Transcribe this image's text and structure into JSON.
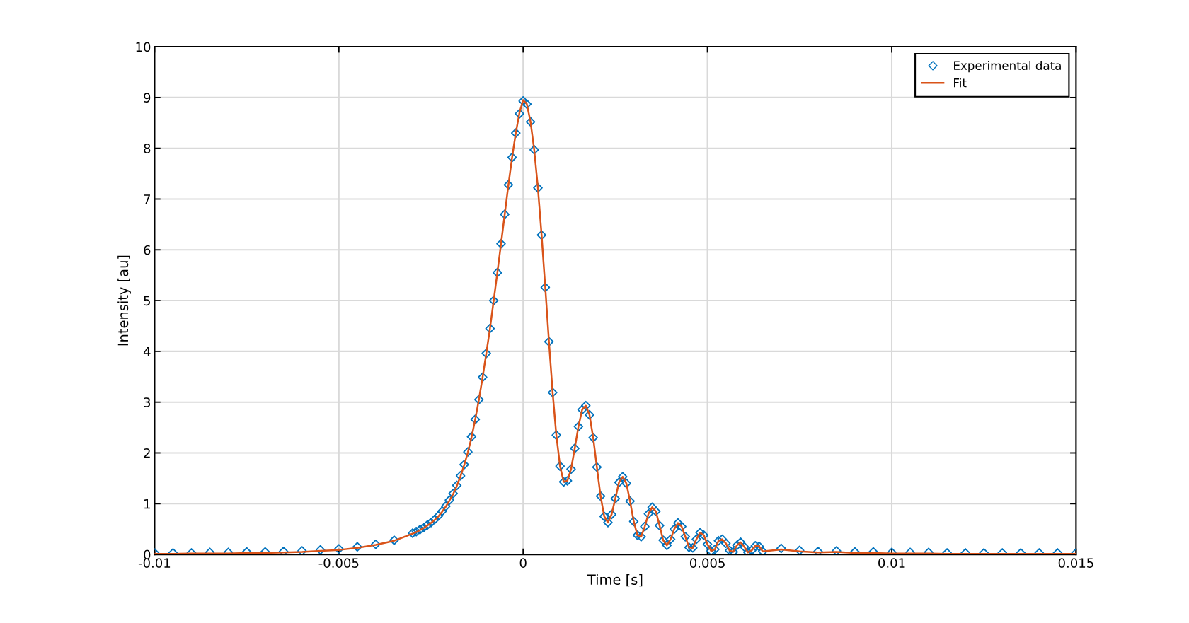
{
  "chart_data": {
    "type": "scatter",
    "xlabel": "Time [s]",
    "ylabel": "Intensity [au]",
    "xlim": [
      -0.01,
      0.015
    ],
    "xticks": [
      -0.01,
      -0.005,
      0,
      0.005,
      0.01,
      0.015
    ],
    "ylim": [
      0,
      10
    ],
    "yticks": [
      0,
      1,
      2,
      3,
      4,
      5,
      6,
      7,
      8,
      9,
      10
    ],
    "grid": true,
    "legend": "top right",
    "series": [
      {
        "name": "Experimental data",
        "marker": "diamond",
        "color": "#0072bd",
        "x": [
          -0.01,
          -0.0095,
          -0.009,
          -0.0085,
          -0.008,
          -0.0075,
          -0.007,
          -0.0065,
          -0.006,
          -0.0055,
          -0.005,
          -0.0045,
          -0.004,
          -0.0035,
          -0.003,
          -0.0029,
          -0.0028,
          -0.0027,
          -0.0026,
          -0.0025,
          -0.0024,
          -0.0023,
          -0.0022,
          -0.0021,
          -0.002,
          -0.0019,
          -0.0018,
          -0.0017,
          -0.0016,
          -0.0015,
          -0.0014,
          -0.0013,
          -0.0012,
          -0.0011,
          -0.001,
          -0.0009,
          -0.0008,
          -0.0007,
          -0.0006,
          -0.0005,
          -0.0004,
          -0.0003,
          -0.0002,
          -0.0001,
          0,
          0.0001,
          0.0002,
          0.0003,
          0.0004,
          0.0005,
          0.0006,
          0.0007,
          0.0008,
          0.0009,
          0.001,
          0.0011,
          0.0012,
          0.0013,
          0.0014,
          0.0015,
          0.0016,
          0.0017,
          0.0018,
          0.0019,
          0.002,
          0.0021,
          0.0022,
          0.0023,
          0.0024,
          0.0025,
          0.0026,
          0.0027,
          0.0028,
          0.0029,
          0.003,
          0.0031,
          0.0032,
          0.0033,
          0.0034,
          0.0035,
          0.0036,
          0.0037,
          0.0038,
          0.0039,
          0.004,
          0.0041,
          0.0042,
          0.0043,
          0.0044,
          0.0045,
          0.0046,
          0.0047,
          0.0048,
          0.0049,
          0.005,
          0.0051,
          0.0052,
          0.0053,
          0.0054,
          0.0055,
          0.0056,
          0.0057,
          0.0058,
          0.0059,
          0.006,
          0.0061,
          0.0062,
          0.0063,
          0.0064,
          0.0065,
          0.007,
          0.0075,
          0.008,
          0.0085,
          0.009,
          0.0095,
          0.01,
          0.0105,
          0.011,
          0.0115,
          0.012,
          0.0125,
          0.013,
          0.0135,
          0.014,
          0.0145,
          0.015
        ],
        "values": [
          0.03,
          0.03,
          0.03,
          0.04,
          0.04,
          0.05,
          0.05,
          0.06,
          0.07,
          0.09,
          0.11,
          0.15,
          0.2,
          0.28,
          0.42,
          0.45,
          0.49,
          0.53,
          0.58,
          0.63,
          0.69,
          0.76,
          0.85,
          0.95,
          1.07,
          1.2,
          1.36,
          1.55,
          1.77,
          2.02,
          2.32,
          2.66,
          3.05,
          3.49,
          3.96,
          4.45,
          5.0,
          5.55,
          6.12,
          6.7,
          7.28,
          7.82,
          8.3,
          8.68,
          8.93,
          8.87,
          8.52,
          7.97,
          7.22,
          6.29,
          5.26,
          4.19,
          3.19,
          2.35,
          1.74,
          1.43,
          1.45,
          1.68,
          2.09,
          2.52,
          2.85,
          2.93,
          2.75,
          2.3,
          1.72,
          1.15,
          0.75,
          0.63,
          0.79,
          1.1,
          1.42,
          1.53,
          1.4,
          1.05,
          0.65,
          0.38,
          0.35,
          0.55,
          0.8,
          0.93,
          0.85,
          0.57,
          0.28,
          0.18,
          0.3,
          0.5,
          0.62,
          0.55,
          0.35,
          0.14,
          0.13,
          0.3,
          0.43,
          0.38,
          0.2,
          0.07,
          0.1,
          0.27,
          0.3,
          0.22,
          0.08,
          0.05,
          0.18,
          0.24,
          0.15,
          0.04,
          0.08,
          0.17,
          0.16,
          0.06,
          0.12,
          0.08,
          0.06,
          0.07,
          0.05,
          0.05,
          0.04,
          0.04,
          0.04,
          0.03,
          0.03,
          0.03,
          0.03,
          0.03,
          0.03,
          0.03,
          0.03
        ]
      },
      {
        "name": "Fit",
        "type": "line",
        "marker": "none",
        "line_style": "solid",
        "color": "#d95319",
        "x": [
          -0.01,
          -0.0095,
          -0.009,
          -0.0085,
          -0.008,
          -0.0075,
          -0.007,
          -0.0065,
          -0.006,
          -0.0055,
          -0.005,
          -0.0045,
          -0.004,
          -0.0035,
          -0.003,
          -0.0029,
          -0.0028,
          -0.0027,
          -0.0026,
          -0.0025,
          -0.0024,
          -0.0023,
          -0.0022,
          -0.0021,
          -0.002,
          -0.0019,
          -0.0018,
          -0.0017,
          -0.0016,
          -0.0015,
          -0.0014,
          -0.0013,
          -0.0012,
          -0.0011,
          -0.001,
          -0.0009,
          -0.0008,
          -0.0007,
          -0.0006,
          -0.0005,
          -0.0004,
          -0.0003,
          -0.0002,
          -0.0001,
          0,
          0.0001,
          0.0002,
          0.0003,
          0.0004,
          0.0005,
          0.0006,
          0.0007,
          0.0008,
          0.0009,
          0.001,
          0.0011,
          0.0012,
          0.0013,
          0.0014,
          0.0015,
          0.0016,
          0.0017,
          0.0018,
          0.0019,
          0.002,
          0.0021,
          0.0022,
          0.0023,
          0.0024,
          0.0025,
          0.0026,
          0.0027,
          0.0028,
          0.0029,
          0.003,
          0.0031,
          0.0032,
          0.0033,
          0.0034,
          0.0035,
          0.0036,
          0.0037,
          0.0038,
          0.0039,
          0.004,
          0.0041,
          0.0042,
          0.0043,
          0.0044,
          0.0045,
          0.0046,
          0.0047,
          0.0048,
          0.0049,
          0.005,
          0.0051,
          0.0052,
          0.0053,
          0.0054,
          0.0055,
          0.0056,
          0.0057,
          0.0058,
          0.0059,
          0.006,
          0.0061,
          0.0062,
          0.0063,
          0.0064,
          0.0065,
          0.007,
          0.0075,
          0.008,
          0.0085,
          0.009,
          0.0095,
          0.01,
          0.0105,
          0.011,
          0.0115,
          0.012,
          0.0125,
          0.013,
          0.0135,
          0.014,
          0.0145,
          0.015
        ],
        "values": [
          0.01,
          0.01,
          0.02,
          0.02,
          0.02,
          0.03,
          0.03,
          0.04,
          0.05,
          0.07,
          0.09,
          0.13,
          0.19,
          0.27,
          0.41,
          0.44,
          0.48,
          0.52,
          0.57,
          0.62,
          0.68,
          0.75,
          0.84,
          0.94,
          1.06,
          1.19,
          1.35,
          1.54,
          1.76,
          2.01,
          2.31,
          2.66,
          3.05,
          3.49,
          3.96,
          4.45,
          5.0,
          5.55,
          6.12,
          6.7,
          7.28,
          7.82,
          8.3,
          8.7,
          8.95,
          8.87,
          8.52,
          7.97,
          7.22,
          6.29,
          5.26,
          4.19,
          3.19,
          2.35,
          1.74,
          1.43,
          1.45,
          1.68,
          2.09,
          2.52,
          2.85,
          2.93,
          2.75,
          2.3,
          1.72,
          1.15,
          0.75,
          0.63,
          0.79,
          1.1,
          1.42,
          1.53,
          1.4,
          1.05,
          0.65,
          0.38,
          0.35,
          0.55,
          0.8,
          0.93,
          0.85,
          0.57,
          0.28,
          0.18,
          0.3,
          0.5,
          0.62,
          0.55,
          0.35,
          0.14,
          0.13,
          0.3,
          0.43,
          0.38,
          0.2,
          0.07,
          0.1,
          0.27,
          0.3,
          0.22,
          0.08,
          0.05,
          0.18,
          0.24,
          0.15,
          0.04,
          0.08,
          0.17,
          0.16,
          0.06,
          0.1,
          0.06,
          0.04,
          0.05,
          0.03,
          0.03,
          0.02,
          0.02,
          0.02,
          0.01,
          0.01,
          0.01,
          0.01,
          0.01,
          0.01,
          0.01,
          0.01
        ]
      }
    ]
  }
}
